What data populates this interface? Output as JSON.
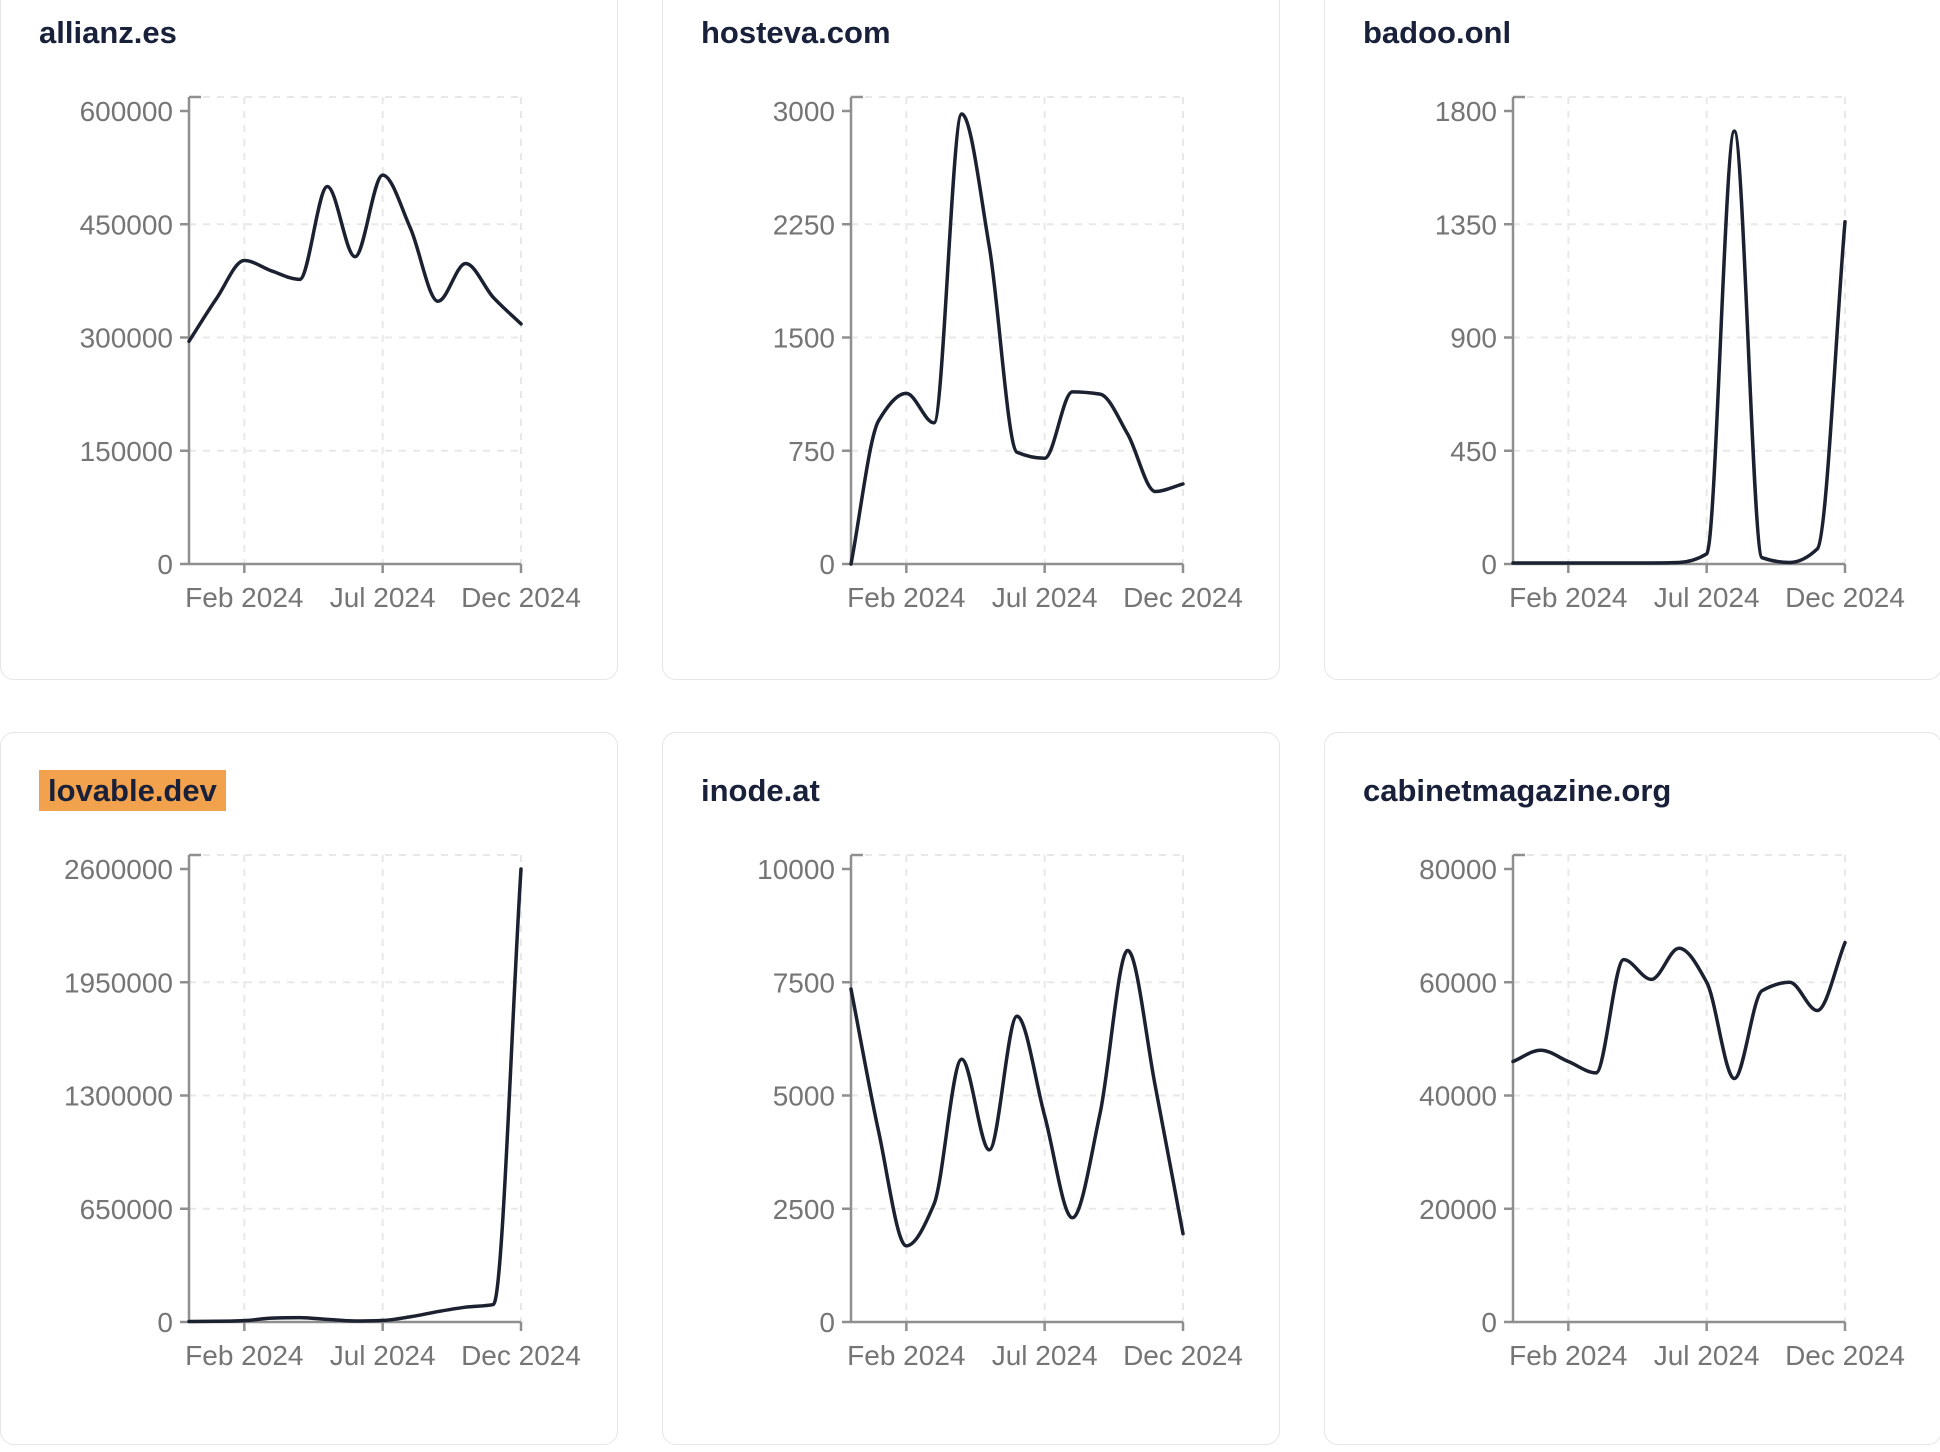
{
  "page": {
    "title": "Domain traffic dashboard"
  },
  "colors": {
    "line": "#1b2130",
    "title": "#18203a",
    "tick_label": "#757575",
    "axis": "#8f8f8f",
    "grid": "#e8e8e8",
    "highlight_bg": "#f2a24c",
    "card_border": "#e5e5e5",
    "card_bg": "#ffffff"
  },
  "cards": [
    {
      "title": "allianz.es",
      "highlighted": false
    },
    {
      "title": "hosteva.com",
      "highlighted": false
    },
    {
      "title": "badoo.onl",
      "highlighted": false
    },
    {
      "title": "lovable.dev",
      "highlighted": true
    },
    {
      "title": "inode.at",
      "highlighted": false
    },
    {
      "title": "cabinetmagazine.org",
      "highlighted": false
    }
  ],
  "chart_data": [
    {
      "type": "line",
      "title": "allianz.es",
      "x": [
        "Dec 2023",
        "Jan 2024",
        "Feb 2024",
        "Mar 2024",
        "Apr 2024",
        "May 2024",
        "Jun 2024",
        "Jul 2024",
        "Aug 2024",
        "Sep 2024",
        "Oct 2024",
        "Nov 2024",
        "Dec 2024"
      ],
      "values": [
        295000,
        352000,
        402000,
        388000,
        377000,
        500000,
        407000,
        515000,
        445000,
        348000,
        398000,
        353000,
        318000
      ],
      "ylim": [
        0,
        600000
      ],
      "yticks": [
        0,
        150000,
        300000,
        450000,
        600000
      ],
      "xtick_labels": [
        "Feb 2024",
        "Jul 2024",
        "Dec 2024"
      ],
      "xtick_index": [
        2,
        7,
        12
      ],
      "grid": "dashed",
      "legend": "none"
    },
    {
      "type": "line",
      "title": "hosteva.com",
      "x": [
        "Dec 2023",
        "Jan 2024",
        "Feb 2024",
        "Mar 2024",
        "Apr 2024",
        "May 2024",
        "Jun 2024",
        "Jul 2024",
        "Aug 2024",
        "Sep 2024",
        "Oct 2024",
        "Nov 2024",
        "Dec 2024"
      ],
      "values": [
        0,
        950,
        1130,
        935,
        2980,
        2100,
        740,
        700,
        1140,
        1125,
        860,
        480,
        530
      ],
      "ylim": [
        0,
        3000
      ],
      "yticks": [
        0,
        750,
        1500,
        2250,
        3000
      ],
      "xtick_labels": [
        "Feb 2024",
        "Jul 2024",
        "Dec 2024"
      ],
      "xtick_index": [
        2,
        7,
        12
      ],
      "grid": "dashed",
      "legend": "none"
    },
    {
      "type": "line",
      "title": "badoo.onl",
      "x": [
        "Dec 2023",
        "Jan 2024",
        "Feb 2024",
        "Mar 2024",
        "Apr 2024",
        "May 2024",
        "Jun 2024",
        "Jul 2024",
        "Aug 2024",
        "Sep 2024",
        "Oct 2024",
        "Nov 2024",
        "Dec 2024"
      ],
      "values": [
        4,
        4,
        4,
        4,
        4,
        4,
        6,
        40,
        1720,
        25,
        6,
        60,
        1360
      ],
      "ylim": [
        0,
        1800
      ],
      "yticks": [
        0,
        450,
        900,
        1350,
        1800
      ],
      "xtick_labels": [
        "Feb 2024",
        "Jul 2024",
        "Dec 2024"
      ],
      "xtick_index": [
        2,
        7,
        12
      ],
      "grid": "dashed",
      "legend": "none"
    },
    {
      "type": "line",
      "title": "lovable.dev",
      "x": [
        "Dec 2023",
        "Jan 2024",
        "Feb 2024",
        "Mar 2024",
        "Apr 2024",
        "May 2024",
        "Jun 2024",
        "Jul 2024",
        "Aug 2024",
        "Sep 2024",
        "Oct 2024",
        "Nov 2024",
        "Dec 2024"
      ],
      "values": [
        3000,
        4000,
        8000,
        22000,
        25000,
        15000,
        6000,
        9000,
        30000,
        60000,
        85000,
        100000,
        2600000
      ],
      "ylim": [
        0,
        2600000
      ],
      "yticks": [
        0,
        650000,
        1300000,
        1950000,
        2600000
      ],
      "xtick_labels": [
        "Feb 2024",
        "Jul 2024",
        "Dec 2024"
      ],
      "xtick_index": [
        2,
        7,
        12
      ],
      "grid": "dashed",
      "legend": "none"
    },
    {
      "type": "line",
      "title": "inode.at",
      "x": [
        "Dec 2023",
        "Jan 2024",
        "Feb 2024",
        "Mar 2024",
        "Apr 2024",
        "May 2024",
        "Jun 2024",
        "Jul 2024",
        "Aug 2024",
        "Sep 2024",
        "Oct 2024",
        "Nov 2024",
        "Dec 2024"
      ],
      "values": [
        7350,
        4200,
        1680,
        2600,
        5800,
        3800,
        6750,
        4550,
        2300,
        4600,
        8200,
        5200,
        1950
      ],
      "ylim": [
        0,
        10000
      ],
      "yticks": [
        0,
        2500,
        5000,
        7500,
        10000
      ],
      "xtick_labels": [
        "Feb 2024",
        "Jul 2024",
        "Dec 2024"
      ],
      "xtick_index": [
        2,
        7,
        12
      ],
      "grid": "dashed",
      "legend": "none"
    },
    {
      "type": "line",
      "title": "cabinetmagazine.org",
      "x": [
        "Dec 2023",
        "Jan 2024",
        "Feb 2024",
        "Mar 2024",
        "Apr 2024",
        "May 2024",
        "Jun 2024",
        "Jul 2024",
        "Aug 2024",
        "Sep 2024",
        "Oct 2024",
        "Nov 2024",
        "Dec 2024"
      ],
      "values": [
        46000,
        48000,
        46000,
        44000,
        64000,
        60500,
        66000,
        60000,
        43000,
        58500,
        60000,
        55000,
        67000
      ],
      "ylim": [
        0,
        80000
      ],
      "yticks": [
        0,
        20000,
        40000,
        60000,
        80000
      ],
      "xtick_labels": [
        "Feb 2024",
        "Jul 2024",
        "Dec 2024"
      ],
      "xtick_index": [
        2,
        7,
        12
      ],
      "grid": "dashed",
      "legend": "none"
    }
  ]
}
